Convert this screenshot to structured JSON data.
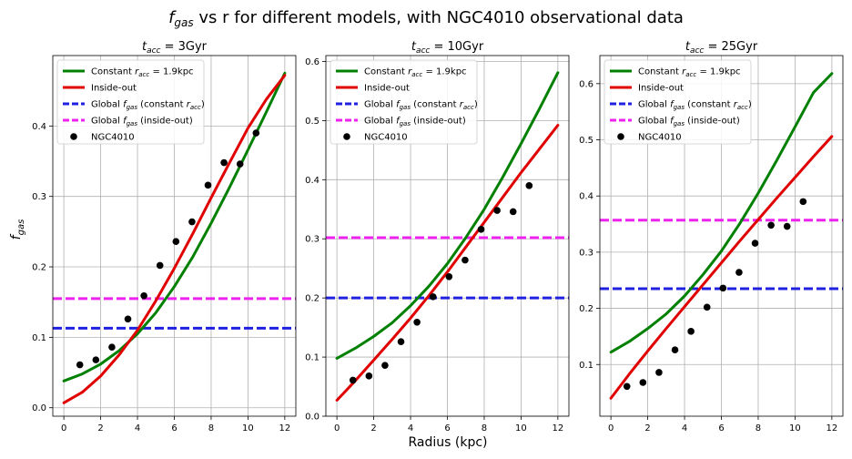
{
  "figure": {
    "suptitle_var": "f",
    "suptitle_sub": "gas",
    "suptitle_rest": " vs r for different models, with NGC4010 observational data",
    "xlabel": "Radius (kpc)",
    "ylabel_var": "f",
    "ylabel_sub": "gas"
  },
  "colors": {
    "constant": "#008000",
    "inside_out": "#e00000",
    "global_constant": "#2020e0",
    "global_inside_out": "#ee22ee",
    "observed": "#000000",
    "grid": "#b0b0b0"
  },
  "legend": {
    "constant": {
      "pre": "Constant ",
      "var": "r",
      "sub": "acc",
      "post": " = 1.9kpc"
    },
    "inside_out": "Inside-out",
    "global_constant": {
      "pre": "Global ",
      "var": "f",
      "sub": "gas",
      "post": " (constant ",
      "var2": "r",
      "sub2": "acc",
      "post2": ")"
    },
    "global_inside_out": {
      "pre": "Global ",
      "var": "f",
      "sub": "gas",
      "post": " (inside-out)"
    },
    "observed": "NGC4010"
  },
  "chart_data": [
    {
      "type": "line",
      "title": {
        "var": "t",
        "sub": "acc",
        "post": " = 3Gyr"
      },
      "xlim": [
        -0.6,
        12.6
      ],
      "ylim": [
        -0.012,
        0.5
      ],
      "xticks": [
        0,
        2,
        4,
        6,
        8,
        10,
        12
      ],
      "yticks": [
        0.0,
        0.1,
        0.2,
        0.3,
        0.4
      ],
      "ytick_labels": [
        "0.0",
        "0.1",
        "0.2",
        "0.3",
        "0.4"
      ],
      "grid": true,
      "legend_position": "upper-left",
      "series": [
        {
          "name": "Constant r_acc = 1.9kpc",
          "key": "constant",
          "x": [
            0,
            1,
            2,
            3,
            4,
            5,
            6,
            7,
            8,
            9,
            10,
            11,
            12
          ],
          "y": [
            0.038,
            0.048,
            0.062,
            0.081,
            0.105,
            0.135,
            0.172,
            0.214,
            0.262,
            0.313,
            0.366,
            0.42,
            0.475
          ]
        },
        {
          "name": "Inside-out",
          "key": "inside_out",
          "x": [
            0,
            1,
            2,
            3,
            4,
            5,
            6,
            7,
            8,
            9,
            10,
            11,
            12
          ],
          "y": [
            0.007,
            0.022,
            0.045,
            0.075,
            0.11,
            0.152,
            0.198,
            0.247,
            0.298,
            0.348,
            0.397,
            0.438,
            0.472
          ]
        }
      ],
      "hlines": [
        {
          "name": "Global f_gas (constant r_acc)",
          "key": "global_constant",
          "y": 0.113
        },
        {
          "name": "Global f_gas (inside-out)",
          "key": "global_inside_out",
          "y": 0.155
        }
      ],
      "scatter": {
        "name": "NGC4010",
        "key": "observed",
        "x": [
          0.87,
          1.74,
          2.61,
          3.48,
          4.35,
          5.22,
          6.09,
          6.96,
          7.83,
          8.7,
          9.57,
          10.44
        ],
        "y": [
          0.061,
          0.068,
          0.086,
          0.126,
          0.159,
          0.202,
          0.236,
          0.264,
          0.316,
          0.348,
          0.346,
          0.39
        ]
      }
    },
    {
      "type": "line",
      "title": {
        "var": "t",
        "sub": "acc",
        "post": " = 10Gyr"
      },
      "xlim": [
        -0.6,
        12.6
      ],
      "ylim": [
        0.0,
        0.61
      ],
      "xticks": [
        0,
        2,
        4,
        6,
        8,
        10,
        12
      ],
      "yticks": [
        0.0,
        0.1,
        0.2,
        0.3,
        0.4,
        0.5,
        0.6
      ],
      "ytick_labels": [
        "0.0",
        "0.1",
        "0.2",
        "0.3",
        "0.4",
        "0.5",
        "0.6"
      ],
      "grid": true,
      "legend_position": "upper-left",
      "series": [
        {
          "name": "Constant r_acc = 1.9kpc",
          "key": "constant",
          "x": [
            0,
            1,
            2,
            3,
            4,
            5,
            6,
            7,
            8,
            9,
            10,
            11,
            12
          ],
          "y": [
            0.098,
            0.115,
            0.135,
            0.158,
            0.187,
            0.22,
            0.258,
            0.302,
            0.35,
            0.404,
            0.461,
            0.52,
            0.581
          ]
        },
        {
          "name": "Inside-out",
          "key": "inside_out",
          "x": [
            0,
            1,
            2,
            3,
            4,
            5,
            6,
            7,
            8,
            9,
            10,
            11,
            12
          ],
          "y": [
            0.027,
            0.06,
            0.095,
            0.13,
            0.166,
            0.204,
            0.244,
            0.286,
            0.328,
            0.37,
            0.412,
            0.452,
            0.492
          ]
        }
      ],
      "hlines": [
        {
          "name": "Global f_gas (constant r_acc)",
          "key": "global_constant",
          "y": 0.2
        },
        {
          "name": "Global f_gas (inside-out)",
          "key": "global_inside_out",
          "y": 0.302
        }
      ],
      "scatter": {
        "name": "NGC4010",
        "key": "observed",
        "x": [
          0.87,
          1.74,
          2.61,
          3.48,
          4.35,
          5.22,
          6.09,
          6.96,
          7.83,
          8.7,
          9.57,
          10.44
        ],
        "y": [
          0.061,
          0.068,
          0.086,
          0.126,
          0.159,
          0.202,
          0.236,
          0.264,
          0.316,
          0.348,
          0.346,
          0.39
        ]
      }
    },
    {
      "type": "line",
      "title": {
        "var": "t",
        "sub": "acc",
        "post": " = 25Gyr"
      },
      "xlim": [
        -0.6,
        12.6
      ],
      "ylim": [
        0.008,
        0.65
      ],
      "xticks": [
        0,
        2,
        4,
        6,
        8,
        10,
        12
      ],
      "yticks": [
        0.1,
        0.2,
        0.3,
        0.4,
        0.5,
        0.6
      ],
      "ytick_labels": [
        "0.1",
        "0.2",
        "0.3",
        "0.4",
        "0.5",
        "0.6"
      ],
      "grid": true,
      "legend_position": "upper-left",
      "series": [
        {
          "name": "Constant r_acc = 1.9kpc",
          "key": "constant",
          "x": [
            0,
            1,
            2,
            3,
            4,
            5,
            6,
            7,
            8,
            9,
            10,
            11,
            12
          ],
          "y": [
            0.122,
            0.141,
            0.164,
            0.19,
            0.222,
            0.26,
            0.302,
            0.351,
            0.405,
            0.463,
            0.523,
            0.584,
            0.618
          ]
        },
        {
          "name": "Inside-out",
          "key": "inside_out",
          "x": [
            0,
            1,
            2,
            3,
            4,
            5,
            6,
            7,
            8,
            9,
            10,
            11,
            12
          ],
          "y": [
            0.04,
            0.083,
            0.124,
            0.164,
            0.203,
            0.242,
            0.281,
            0.32,
            0.358,
            0.396,
            0.433,
            0.47,
            0.506
          ]
        }
      ],
      "hlines": [
        {
          "name": "Global f_gas (constant r_acc)",
          "key": "global_constant",
          "y": 0.235
        },
        {
          "name": "Global f_gas (inside-out)",
          "key": "global_inside_out",
          "y": 0.357
        }
      ],
      "scatter": {
        "name": "NGC4010",
        "key": "observed",
        "x": [
          0.87,
          1.74,
          2.61,
          3.48,
          4.35,
          5.22,
          6.09,
          6.96,
          7.83,
          8.7,
          9.57,
          10.44
        ],
        "y": [
          0.061,
          0.068,
          0.086,
          0.126,
          0.159,
          0.202,
          0.236,
          0.264,
          0.316,
          0.348,
          0.346,
          0.39
        ]
      }
    }
  ]
}
